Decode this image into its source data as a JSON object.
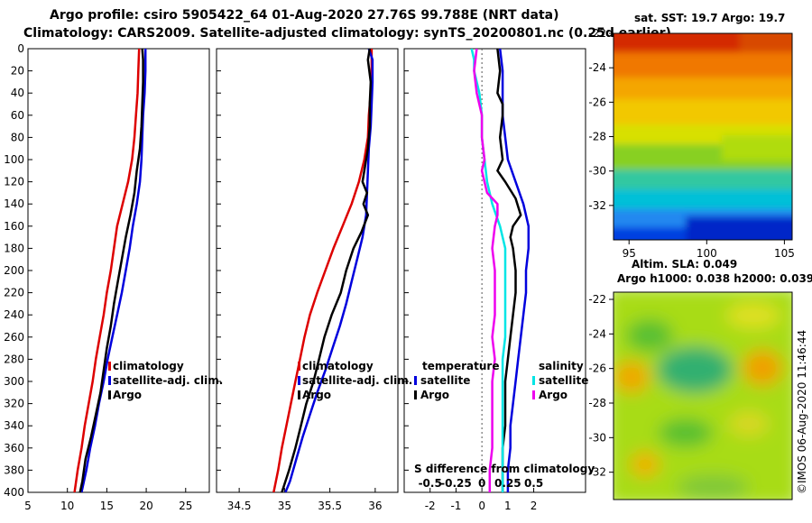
{
  "header": {
    "line1": "Argo profile: csiro 5905422_64 01-Aug-2020 27.76S 99.788E (NRT data)",
    "line2": "Climatology: CARS2009. Satellite-adjusted climatology: synTS_20200801.nc (0.25d earlier)"
  },
  "credit": "©IMOS 06-Aug-2020 11:46:44",
  "colors": {
    "climatology": "#dd0000",
    "satellite": "#0000dd",
    "argo": "#000000",
    "cyan": "#00e5e5",
    "magenta": "#ee00ee"
  },
  "chart_data": [
    {
      "type": "line",
      "name": "temperature-profile",
      "ylim": [
        400,
        0
      ],
      "xlim": [
        5,
        28
      ],
      "yticks": [
        "0",
        "20",
        "40",
        "60",
        "80",
        "100",
        "120",
        "140",
        "160",
        "180",
        "200",
        "220",
        "240",
        "260",
        "280",
        "300",
        "320",
        "340",
        "360",
        "380",
        "400"
      ],
      "xticks": [
        {
          "v": 5,
          "l": "5"
        },
        {
          "v": 10,
          "l": "10"
        },
        {
          "v": 15,
          "l": "15"
        },
        {
          "v": 20,
          "l": "20"
        },
        {
          "v": 25,
          "l": "25"
        }
      ],
      "legend": [
        "climatology",
        "satellite-adj. clim.",
        "Argo"
      ],
      "series": [
        {
          "name": "climatology",
          "color": "#dd0000",
          "points": [
            [
              19.1,
              0
            ],
            [
              19.0,
              20
            ],
            [
              18.9,
              40
            ],
            [
              18.7,
              60
            ],
            [
              18.5,
              80
            ],
            [
              18.2,
              100
            ],
            [
              17.7,
              120
            ],
            [
              17.0,
              140
            ],
            [
              16.3,
              160
            ],
            [
              15.9,
              180
            ],
            [
              15.5,
              200
            ],
            [
              15.0,
              220
            ],
            [
              14.6,
              240
            ],
            [
              14.1,
              260
            ],
            [
              13.6,
              280
            ],
            [
              13.2,
              300
            ],
            [
              12.7,
              320
            ],
            [
              12.2,
              340
            ],
            [
              11.8,
              360
            ],
            [
              11.3,
              380
            ],
            [
              10.9,
              400
            ]
          ]
        },
        {
          "name": "satellite",
          "color": "#0000dd",
          "points": [
            [
              19.9,
              0
            ],
            [
              19.9,
              20
            ],
            [
              19.8,
              40
            ],
            [
              19.6,
              60
            ],
            [
              19.5,
              80
            ],
            [
              19.4,
              100
            ],
            [
              19.2,
              120
            ],
            [
              18.8,
              140
            ],
            [
              18.3,
              160
            ],
            [
              17.9,
              180
            ],
            [
              17.4,
              200
            ],
            [
              16.9,
              220
            ],
            [
              16.3,
              240
            ],
            [
              15.7,
              260
            ],
            [
              15.1,
              280
            ],
            [
              14.6,
              300
            ],
            [
              14.0,
              320
            ],
            [
              13.5,
              340
            ],
            [
              12.9,
              360
            ],
            [
              12.4,
              380
            ],
            [
              11.8,
              400
            ]
          ]
        },
        {
          "name": "argo",
          "color": "#000000",
          "points": [
            [
              19.5,
              0
            ],
            [
              19.6,
              10
            ],
            [
              19.6,
              30
            ],
            [
              19.5,
              50
            ],
            [
              19.4,
              70
            ],
            [
              19.2,
              90
            ],
            [
              18.8,
              110
            ],
            [
              18.5,
              130
            ],
            [
              18.0,
              150
            ],
            [
              17.4,
              170
            ],
            [
              16.9,
              190
            ],
            [
              16.4,
              210
            ],
            [
              15.9,
              230
            ],
            [
              15.5,
              250
            ],
            [
              15.0,
              270
            ],
            [
              14.6,
              290
            ],
            [
              14.2,
              310
            ],
            [
              13.6,
              330
            ],
            [
              13.0,
              350
            ],
            [
              12.3,
              370
            ],
            [
              11.9,
              390
            ],
            [
              11.6,
              400
            ]
          ]
        }
      ]
    },
    {
      "type": "line",
      "name": "salinity-profile",
      "ylim": [
        400,
        0
      ],
      "xlim": [
        34.25,
        36.25
      ],
      "xticks": [
        {
          "v": 34.5,
          "l": "34.5"
        },
        {
          "v": 35,
          "l": "35"
        },
        {
          "v": 35.5,
          "l": "35.5"
        },
        {
          "v": 36,
          "l": "36"
        }
      ],
      "legend": [
        "climatology",
        "satellite-adj. clim.",
        "Argo"
      ],
      "series": [
        {
          "name": "climatology",
          "color": "#dd0000",
          "points": [
            [
              35.96,
              0
            ],
            [
              35.96,
              20
            ],
            [
              35.95,
              40
            ],
            [
              35.93,
              60
            ],
            [
              35.92,
              80
            ],
            [
              35.88,
              100
            ],
            [
              35.82,
              120
            ],
            [
              35.74,
              140
            ],
            [
              35.64,
              160
            ],
            [
              35.54,
              180
            ],
            [
              35.45,
              200
            ],
            [
              35.36,
              220
            ],
            [
              35.28,
              240
            ],
            [
              35.22,
              260
            ],
            [
              35.17,
              280
            ],
            [
              35.12,
              300
            ],
            [
              35.07,
              320
            ],
            [
              35.02,
              340
            ],
            [
              34.97,
              360
            ],
            [
              34.93,
              380
            ],
            [
              34.88,
              400
            ]
          ]
        },
        {
          "name": "satellite",
          "color": "#0000dd",
          "points": [
            [
              35.93,
              0
            ],
            [
              35.97,
              10
            ],
            [
              35.97,
              30
            ],
            [
              35.96,
              50
            ],
            [
              35.95,
              70
            ],
            [
              35.93,
              90
            ],
            [
              35.92,
              110
            ],
            [
              35.91,
              130
            ],
            [
              35.9,
              150
            ],
            [
              35.86,
              170
            ],
            [
              35.8,
              190
            ],
            [
              35.74,
              210
            ],
            [
              35.68,
              230
            ],
            [
              35.61,
              250
            ],
            [
              35.53,
              270
            ],
            [
              35.45,
              290
            ],
            [
              35.36,
              310
            ],
            [
              35.28,
              330
            ],
            [
              35.2,
              350
            ],
            [
              35.13,
              370
            ],
            [
              35.06,
              390
            ],
            [
              35.01,
              400
            ]
          ]
        },
        {
          "name": "argo",
          "color": "#000000",
          "points": [
            [
              35.94,
              0
            ],
            [
              35.92,
              10
            ],
            [
              35.95,
              30
            ],
            [
              35.94,
              50
            ],
            [
              35.94,
              70
            ],
            [
              35.92,
              90
            ],
            [
              35.88,
              110
            ],
            [
              35.86,
              120
            ],
            [
              35.91,
              130
            ],
            [
              35.87,
              140
            ],
            [
              35.92,
              150
            ],
            [
              35.85,
              165
            ],
            [
              35.76,
              180
            ],
            [
              35.68,
              200
            ],
            [
              35.62,
              220
            ],
            [
              35.52,
              240
            ],
            [
              35.44,
              260
            ],
            [
              35.38,
              280
            ],
            [
              35.32,
              300
            ],
            [
              35.24,
              320
            ],
            [
              35.18,
              340
            ],
            [
              35.12,
              360
            ],
            [
              35.05,
              380
            ],
            [
              34.97,
              400
            ]
          ]
        }
      ]
    },
    {
      "type": "line",
      "name": "difference-profile",
      "ylim": [
        400,
        0
      ],
      "xlim": [
        -3,
        4
      ],
      "xticks": [
        {
          "v": -2,
          "l": "-2"
        },
        {
          "v": -1,
          "l": "-1"
        },
        {
          "v": 0,
          "l": "0"
        },
        {
          "v": 1,
          "l": "1"
        },
        {
          "v": 2,
          "l": "2"
        }
      ],
      "top_ticks": [
        {
          "v": -2,
          "l": "-0.5"
        },
        {
          "v": -1,
          "l": "-0.25"
        },
        {
          "v": 0,
          "l": "0"
        },
        {
          "v": 1,
          "l": "0.25"
        },
        {
          "v": 2,
          "l": "0.5"
        }
      ],
      "top_axis_label": "S difference from climatology",
      "legend_left": [
        "temperature",
        "satellite",
        "Argo"
      ],
      "legend_right": [
        "salinity",
        "satellite",
        "Argo"
      ],
      "series": [
        {
          "name": "temperature-satellite",
          "color": "#0000dd",
          "points": [
            [
              0.7,
              0
            ],
            [
              0.8,
              20
            ],
            [
              0.8,
              40
            ],
            [
              0.8,
              60
            ],
            [
              0.9,
              80
            ],
            [
              1.0,
              100
            ],
            [
              1.3,
              120
            ],
            [
              1.6,
              140
            ],
            [
              1.8,
              160
            ],
            [
              1.8,
              180
            ],
            [
              1.7,
              200
            ],
            [
              1.7,
              220
            ],
            [
              1.6,
              240
            ],
            [
              1.5,
              260
            ],
            [
              1.4,
              280
            ],
            [
              1.3,
              300
            ],
            [
              1.2,
              320
            ],
            [
              1.1,
              340
            ],
            [
              1.1,
              360
            ],
            [
              1.0,
              380
            ],
            [
              1.0,
              400
            ]
          ]
        },
        {
          "name": "temperature-argo",
          "color": "#000000",
          "points": [
            [
              0.6,
              0
            ],
            [
              0.7,
              20
            ],
            [
              0.6,
              40
            ],
            [
              0.8,
              50
            ],
            [
              0.8,
              60
            ],
            [
              0.7,
              80
            ],
            [
              0.8,
              100
            ],
            [
              0.6,
              110
            ],
            [
              0.9,
              120
            ],
            [
              1.3,
              135
            ],
            [
              1.5,
              150
            ],
            [
              1.2,
              160
            ],
            [
              1.1,
              170
            ],
            [
              1.2,
              180
            ],
            [
              1.3,
              200
            ],
            [
              1.3,
              220
            ],
            [
              1.2,
              240
            ],
            [
              1.1,
              260
            ],
            [
              1.0,
              280
            ],
            [
              0.9,
              300
            ],
            [
              0.9,
              320
            ],
            [
              0.9,
              340
            ],
            [
              0.8,
              360
            ],
            [
              0.8,
              380
            ],
            [
              0.8,
              400
            ]
          ]
        },
        {
          "name": "salinity-satellite",
          "color": "#00e5e5",
          "points": [
            [
              -0.4,
              0
            ],
            [
              -0.3,
              10
            ],
            [
              -0.3,
              20
            ],
            [
              -0.1,
              40
            ],
            [
              0.0,
              60
            ],
            [
              0.0,
              80
            ],
            [
              0.1,
              100
            ],
            [
              0.2,
              120
            ],
            [
              0.4,
              140
            ],
            [
              0.7,
              160
            ],
            [
              0.9,
              180
            ],
            [
              0.9,
              200
            ],
            [
              0.9,
              220
            ],
            [
              0.9,
              240
            ],
            [
              0.9,
              260
            ],
            [
              0.8,
              280
            ],
            [
              0.8,
              300
            ],
            [
              0.8,
              320
            ],
            [
              0.8,
              340
            ],
            [
              0.8,
              360
            ],
            [
              0.8,
              380
            ],
            [
              0.8,
              400
            ]
          ]
        },
        {
          "name": "salinity-argo",
          "color": "#ee00ee",
          "points": [
            [
              -0.2,
              0
            ],
            [
              -0.3,
              20
            ],
            [
              -0.2,
              40
            ],
            [
              0.0,
              60
            ],
            [
              0.0,
              80
            ],
            [
              0.1,
              100
            ],
            [
              0.0,
              110
            ],
            [
              0.1,
              120
            ],
            [
              0.2,
              130
            ],
            [
              0.6,
              140
            ],
            [
              0.6,
              150
            ],
            [
              0.5,
              160
            ],
            [
              0.4,
              180
            ],
            [
              0.5,
              200
            ],
            [
              0.5,
              220
            ],
            [
              0.5,
              240
            ],
            [
              0.4,
              260
            ],
            [
              0.5,
              280
            ],
            [
              0.4,
              300
            ],
            [
              0.4,
              320
            ],
            [
              0.4,
              340
            ],
            [
              0.4,
              360
            ],
            [
              0.3,
              380
            ],
            [
              0.3,
              400
            ]
          ]
        }
      ]
    },
    {
      "type": "heatmap",
      "name": "sst-map",
      "title": "sat. SST: 19.7 Argo: 19.7",
      "xlim": [
        94,
        105.5
      ],
      "ylim": [
        -34,
        -22
      ],
      "xticks": [
        "95",
        "100",
        "105"
      ],
      "yticks": [
        "-22",
        "-24",
        "-26",
        "-28",
        "-30",
        "-32"
      ]
    },
    {
      "type": "heatmap",
      "name": "sla-map",
      "title_lines": [
        "Altim. SLA: 0.049",
        "Argo h1000: 0.038 h2000: 0.039"
      ],
      "xlim": [
        94,
        105.5
      ],
      "ylim": [
        -34,
        -22
      ],
      "yticks": [
        "-22",
        "-24",
        "-26",
        "-28",
        "-30",
        "-32"
      ]
    }
  ]
}
